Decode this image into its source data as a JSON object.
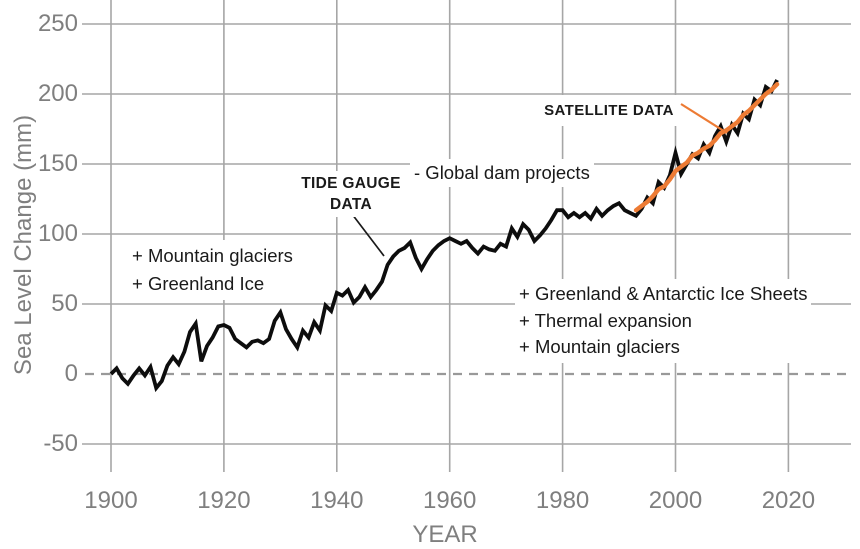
{
  "chart_data": {
    "type": "line",
    "title": "",
    "xlabel": "YEAR",
    "ylabel": "Sea Level Change (mm)",
    "x_ticks": [
      1900,
      1920,
      1940,
      1960,
      1980,
      2000,
      2020
    ],
    "y_ticks": [
      250,
      200,
      150,
      100,
      50,
      0,
      -50
    ],
    "xlim": [
      1900,
      2030
    ],
    "ylim": [
      -70,
      267
    ],
    "grid": true,
    "zero_line": "dashed",
    "legend_position": "none",
    "colors": {
      "tide_gauge": "#0d0d0d",
      "satellite": "#ed7b34",
      "grid": "#a6a6a6",
      "zero_dash": "#999999",
      "tick_text": "#7f7f7f"
    },
    "series": [
      {
        "name": "TIDE GAUGE DATA",
        "color_key": "tide_gauge",
        "x_start": 1900,
        "x_step": 1,
        "values": [
          0,
          4,
          -3,
          -7,
          -1,
          4,
          -1,
          5,
          -10,
          -5,
          6,
          12,
          7,
          16,
          30,
          36,
          9,
          20,
          26,
          34,
          35,
          33,
          25,
          22,
          19,
          23,
          24,
          22,
          25,
          38,
          44,
          32,
          25,
          19,
          31,
          26,
          37,
          31,
          49,
          45,
          58,
          56,
          60,
          51,
          55,
          62,
          55,
          60,
          66,
          78,
          84,
          88,
          90,
          94,
          83,
          75,
          82,
          88,
          92,
          95,
          97,
          95,
          93,
          95,
          90,
          86,
          91,
          89,
          88,
          93,
          91,
          104,
          98,
          107,
          103,
          95,
          99,
          104,
          110,
          117,
          117,
          112,
          115,
          112,
          115,
          111,
          118,
          113,
          117,
          120,
          122,
          117,
          115,
          113,
          118,
          126,
          122,
          137,
          133,
          142,
          158,
          143,
          150,
          157,
          154,
          164,
          158,
          170,
          177,
          166,
          178,
          172,
          186,
          182,
          196,
          192,
          205,
          202,
          210
        ]
      },
      {
        "name": "SATELLITE DATA",
        "color_key": "satellite",
        "x_start": 1993,
        "x_step": 1,
        "values": [
          117,
          120,
          123,
          127,
          132,
          134,
          139,
          145,
          148,
          151,
          156,
          158,
          161,
          163,
          167,
          172,
          174,
          177,
          180,
          185,
          188,
          192,
          196,
          200,
          203,
          207
        ]
      }
    ],
    "annotations": {
      "tide_gauge_label": "TIDE GAUGE\nDATA",
      "satellite_label": "SATELLITE DATA",
      "dam_note": "- Global dam projects",
      "early_sources": "+ Mountain glaciers\n+ Greenland Ice",
      "modern_sources": "+ Greenland & Antarctic Ice Sheets\n+ Thermal expansion\n+ Mountain glaciers"
    }
  }
}
